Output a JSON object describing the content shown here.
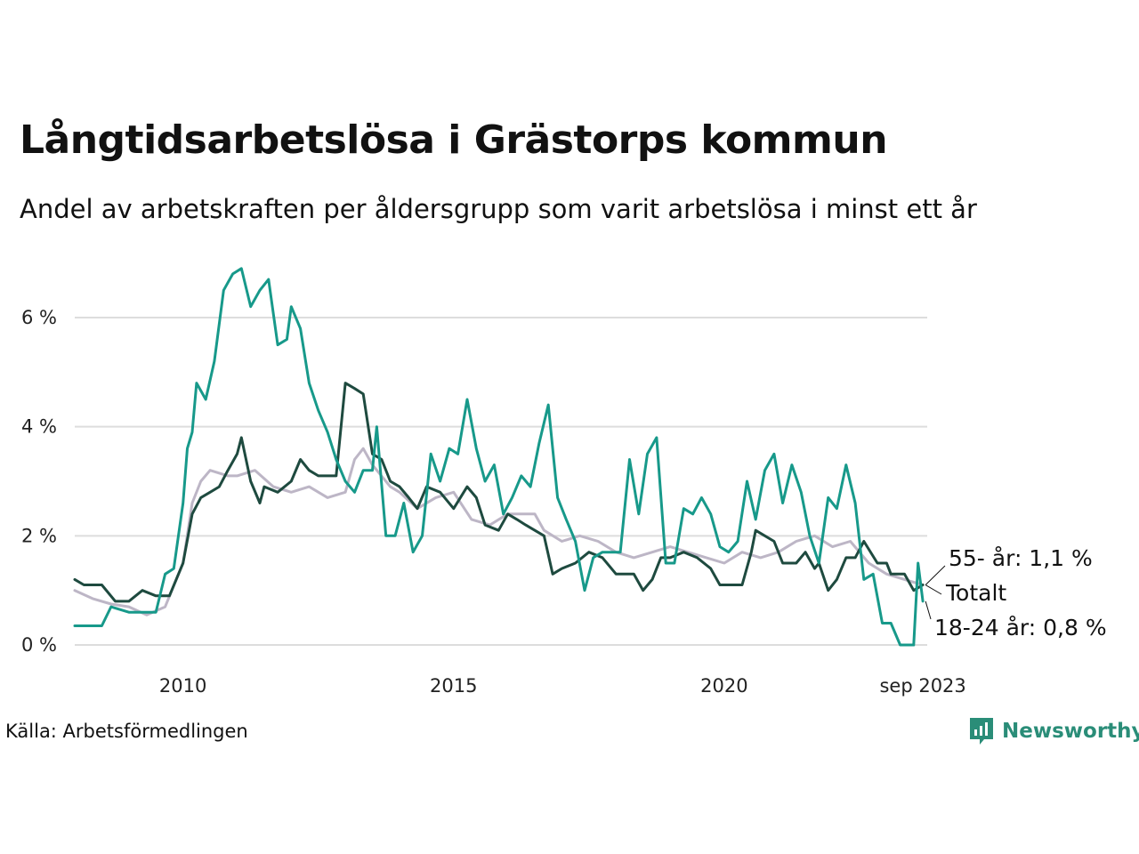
{
  "chart_data": {
    "type": "line",
    "title": "Långtidsarbetslösa i Grästorps kommun",
    "subtitle": "Andel av arbetskraften per åldersgrupp som varit arbetslösa i minst ett år",
    "source": "Källa: Arbetsförmedlingen",
    "brand": "Newsworthy",
    "xlabel": "",
    "ylabel": "",
    "xlim": [
      2008.0,
      2023.75
    ],
    "ylim": [
      0,
      7
    ],
    "x_ticks": [
      {
        "value": 2010,
        "label": "2010"
      },
      {
        "value": 2015,
        "label": "2015"
      },
      {
        "value": 2020,
        "label": "2020"
      },
      {
        "value": 2023.67,
        "label": "sep 2023"
      }
    ],
    "y_ticks": [
      {
        "value": 0,
        "label": "0 %"
      },
      {
        "value": 2,
        "label": "2 %"
      },
      {
        "value": 4,
        "label": "4 %"
      },
      {
        "value": 6,
        "label": "6 %"
      }
    ],
    "grid": true,
    "end_labels": {
      "age_55": "55- år: 1,1 %",
      "total": "Totalt",
      "age_18_24": "18-24 år: 0,8 %"
    },
    "series": [
      {
        "name": "55- år",
        "color": "#bdb6c6",
        "points": [
          [
            2008.0,
            1.0
          ],
          [
            2008.33,
            0.85
          ],
          [
            2008.67,
            0.75
          ],
          [
            2009.0,
            0.7
          ],
          [
            2009.33,
            0.55
          ],
          [
            2009.67,
            0.7
          ],
          [
            2010.0,
            1.5
          ],
          [
            2010.17,
            2.6
          ],
          [
            2010.33,
            3.0
          ],
          [
            2010.5,
            3.2
          ],
          [
            2010.83,
            3.1
          ],
          [
            2011.0,
            3.1
          ],
          [
            2011.33,
            3.2
          ],
          [
            2011.67,
            2.9
          ],
          [
            2012.0,
            2.8
          ],
          [
            2012.33,
            2.9
          ],
          [
            2012.67,
            2.7
          ],
          [
            2013.0,
            2.8
          ],
          [
            2013.17,
            3.4
          ],
          [
            2013.33,
            3.6
          ],
          [
            2013.5,
            3.3
          ],
          [
            2013.83,
            2.9
          ],
          [
            2014.0,
            2.8
          ],
          [
            2014.33,
            2.5
          ],
          [
            2014.67,
            2.7
          ],
          [
            2015.0,
            2.8
          ],
          [
            2015.33,
            2.3
          ],
          [
            2015.67,
            2.2
          ],
          [
            2016.0,
            2.4
          ],
          [
            2016.33,
            2.4
          ],
          [
            2016.5,
            2.4
          ],
          [
            2016.67,
            2.1
          ],
          [
            2017.0,
            1.9
          ],
          [
            2017.33,
            2.0
          ],
          [
            2017.67,
            1.9
          ],
          [
            2018.0,
            1.7
          ],
          [
            2018.33,
            1.6
          ],
          [
            2018.67,
            1.7
          ],
          [
            2019.0,
            1.8
          ],
          [
            2019.33,
            1.7
          ],
          [
            2019.67,
            1.6
          ],
          [
            2020.0,
            1.5
          ],
          [
            2020.33,
            1.7
          ],
          [
            2020.67,
            1.6
          ],
          [
            2021.0,
            1.7
          ],
          [
            2021.33,
            1.9
          ],
          [
            2021.67,
            2.0
          ],
          [
            2022.0,
            1.8
          ],
          [
            2022.33,
            1.9
          ],
          [
            2022.67,
            1.5
          ],
          [
            2023.0,
            1.3
          ],
          [
            2023.33,
            1.2
          ],
          [
            2023.67,
            1.1
          ]
        ]
      },
      {
        "name": "Totalt",
        "color": "#1e4a3f",
        "points": [
          [
            2008.0,
            1.2
          ],
          [
            2008.17,
            1.1
          ],
          [
            2008.5,
            1.1
          ],
          [
            2008.75,
            0.8
          ],
          [
            2009.0,
            0.8
          ],
          [
            2009.25,
            1.0
          ],
          [
            2009.5,
            0.9
          ],
          [
            2009.75,
            0.9
          ],
          [
            2010.0,
            1.5
          ],
          [
            2010.17,
            2.4
          ],
          [
            2010.33,
            2.7
          ],
          [
            2010.5,
            2.8
          ],
          [
            2010.67,
            2.9
          ],
          [
            2010.83,
            3.2
          ],
          [
            2011.0,
            3.5
          ],
          [
            2011.08,
            3.8
          ],
          [
            2011.25,
            3.0
          ],
          [
            2011.42,
            2.6
          ],
          [
            2011.5,
            2.9
          ],
          [
            2011.75,
            2.8
          ],
          [
            2012.0,
            3.0
          ],
          [
            2012.17,
            3.4
          ],
          [
            2012.33,
            3.2
          ],
          [
            2012.5,
            3.1
          ],
          [
            2012.83,
            3.1
          ],
          [
            2013.0,
            4.8
          ],
          [
            2013.17,
            4.7
          ],
          [
            2013.33,
            4.6
          ],
          [
            2013.5,
            3.5
          ],
          [
            2013.67,
            3.4
          ],
          [
            2013.83,
            3.0
          ],
          [
            2014.0,
            2.9
          ],
          [
            2014.17,
            2.7
          ],
          [
            2014.33,
            2.5
          ],
          [
            2014.5,
            2.9
          ],
          [
            2014.75,
            2.8
          ],
          [
            2015.0,
            2.5
          ],
          [
            2015.25,
            2.9
          ],
          [
            2015.42,
            2.7
          ],
          [
            2015.58,
            2.2
          ],
          [
            2015.83,
            2.1
          ],
          [
            2016.0,
            2.4
          ],
          [
            2016.17,
            2.3
          ],
          [
            2016.33,
            2.2
          ],
          [
            2016.67,
            2.0
          ],
          [
            2016.83,
            1.3
          ],
          [
            2017.0,
            1.4
          ],
          [
            2017.25,
            1.5
          ],
          [
            2017.5,
            1.7
          ],
          [
            2017.75,
            1.6
          ],
          [
            2018.0,
            1.3
          ],
          [
            2018.33,
            1.3
          ],
          [
            2018.5,
            1.0
          ],
          [
            2018.67,
            1.2
          ],
          [
            2018.83,
            1.6
          ],
          [
            2019.0,
            1.6
          ],
          [
            2019.25,
            1.7
          ],
          [
            2019.5,
            1.6
          ],
          [
            2019.75,
            1.4
          ],
          [
            2019.92,
            1.1
          ],
          [
            2020.33,
            1.1
          ],
          [
            2020.5,
            1.7
          ],
          [
            2020.58,
            2.1
          ],
          [
            2020.75,
            2.0
          ],
          [
            2020.92,
            1.9
          ],
          [
            2021.08,
            1.5
          ],
          [
            2021.33,
            1.5
          ],
          [
            2021.5,
            1.7
          ],
          [
            2021.67,
            1.4
          ],
          [
            2021.75,
            1.5
          ],
          [
            2021.92,
            1.0
          ],
          [
            2022.08,
            1.2
          ],
          [
            2022.25,
            1.6
          ],
          [
            2022.42,
            1.6
          ],
          [
            2022.58,
            1.9
          ],
          [
            2022.83,
            1.5
          ],
          [
            2023.0,
            1.5
          ],
          [
            2023.08,
            1.3
          ],
          [
            2023.33,
            1.3
          ],
          [
            2023.5,
            1.0
          ],
          [
            2023.67,
            1.1
          ]
        ]
      },
      {
        "name": "18-24 år",
        "color": "#17998a",
        "points": [
          [
            2008.0,
            0.35
          ],
          [
            2008.5,
            0.35
          ],
          [
            2008.67,
            0.7
          ],
          [
            2009.0,
            0.6
          ],
          [
            2009.5,
            0.6
          ],
          [
            2009.67,
            1.3
          ],
          [
            2009.83,
            1.4
          ],
          [
            2010.0,
            2.6
          ],
          [
            2010.08,
            3.6
          ],
          [
            2010.17,
            3.9
          ],
          [
            2010.25,
            4.8
          ],
          [
            2010.42,
            4.5
          ],
          [
            2010.58,
            5.2
          ],
          [
            2010.75,
            6.5
          ],
          [
            2010.92,
            6.8
          ],
          [
            2011.08,
            6.9
          ],
          [
            2011.25,
            6.2
          ],
          [
            2011.42,
            6.5
          ],
          [
            2011.58,
            6.7
          ],
          [
            2011.75,
            5.5
          ],
          [
            2011.92,
            5.6
          ],
          [
            2012.0,
            6.2
          ],
          [
            2012.17,
            5.8
          ],
          [
            2012.33,
            4.8
          ],
          [
            2012.5,
            4.3
          ],
          [
            2012.67,
            3.9
          ],
          [
            2012.83,
            3.4
          ],
          [
            2013.0,
            3.0
          ],
          [
            2013.17,
            2.8
          ],
          [
            2013.33,
            3.2
          ],
          [
            2013.5,
            3.2
          ],
          [
            2013.58,
            4.0
          ],
          [
            2013.75,
            2.0
          ],
          [
            2013.92,
            2.0
          ],
          [
            2014.08,
            2.6
          ],
          [
            2014.25,
            1.7
          ],
          [
            2014.42,
            2.0
          ],
          [
            2014.58,
            3.5
          ],
          [
            2014.75,
            3.0
          ],
          [
            2014.92,
            3.6
          ],
          [
            2015.08,
            3.5
          ],
          [
            2015.25,
            4.5
          ],
          [
            2015.42,
            3.6
          ],
          [
            2015.58,
            3.0
          ],
          [
            2015.75,
            3.3
          ],
          [
            2015.92,
            2.4
          ],
          [
            2016.08,
            2.7
          ],
          [
            2016.25,
            3.1
          ],
          [
            2016.42,
            2.9
          ],
          [
            2016.58,
            3.7
          ],
          [
            2016.75,
            4.4
          ],
          [
            2016.92,
            2.7
          ],
          [
            2017.08,
            2.3
          ],
          [
            2017.25,
            1.9
          ],
          [
            2017.42,
            1.0
          ],
          [
            2017.58,
            1.6
          ],
          [
            2017.75,
            1.7
          ],
          [
            2018.08,
            1.7
          ],
          [
            2018.25,
            3.4
          ],
          [
            2018.42,
            2.4
          ],
          [
            2018.58,
            3.5
          ],
          [
            2018.75,
            3.8
          ],
          [
            2018.92,
            1.5
          ],
          [
            2019.08,
            1.5
          ],
          [
            2019.25,
            2.5
          ],
          [
            2019.42,
            2.4
          ],
          [
            2019.58,
            2.7
          ],
          [
            2019.75,
            2.4
          ],
          [
            2019.92,
            1.8
          ],
          [
            2020.08,
            1.7
          ],
          [
            2020.25,
            1.9
          ],
          [
            2020.42,
            3.0
          ],
          [
            2020.58,
            2.3
          ],
          [
            2020.75,
            3.2
          ],
          [
            2020.92,
            3.5
          ],
          [
            2021.08,
            2.6
          ],
          [
            2021.25,
            3.3
          ],
          [
            2021.42,
            2.8
          ],
          [
            2021.58,
            2.0
          ],
          [
            2021.75,
            1.5
          ],
          [
            2021.92,
            2.7
          ],
          [
            2022.08,
            2.5
          ],
          [
            2022.25,
            3.3
          ],
          [
            2022.42,
            2.6
          ],
          [
            2022.58,
            1.2
          ],
          [
            2022.75,
            1.3
          ],
          [
            2022.92,
            0.4
          ],
          [
            2023.08,
            0.4
          ],
          [
            2023.25,
            0.0
          ],
          [
            2023.5,
            0.0
          ],
          [
            2023.58,
            1.5
          ],
          [
            2023.67,
            0.8
          ]
        ]
      }
    ]
  }
}
